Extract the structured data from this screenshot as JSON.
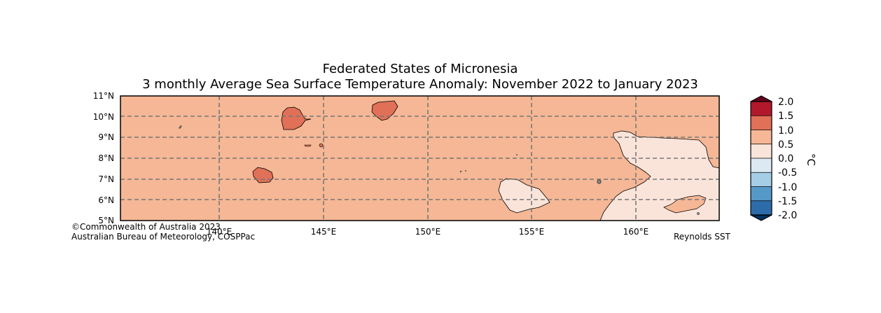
{
  "title": {
    "line1": "Federated States of Micronesia",
    "line2": "3 monthly Average Sea Surface Temperature Anomaly: November 2022 to January 2023"
  },
  "map": {
    "lon_range": [
      135.3,
      164.9
    ],
    "lat_range": [
      5,
      11
    ],
    "lat_ticks": [
      "11°N",
      "10°N",
      "9°N",
      "8°N",
      "7°N",
      "6°N",
      "5°N"
    ],
    "lon_ticks": [
      "140°E",
      "145°E",
      "150°E",
      "155°E",
      "160°E"
    ],
    "gridlines": "dashed grey",
    "background_anomaly_class": "0.5 to 1.0",
    "regions": [
      {
        "name": "warm-patch-north-west",
        "class": "1.0 to 1.5"
      },
      {
        "name": "warm-patch-north",
        "class": "1.0 to 1.5"
      },
      {
        "name": "warm-patch-west",
        "class": "1.0 to 1.5"
      },
      {
        "name": "cool-patch-central-south",
        "class": "0.0 to 0.5"
      },
      {
        "name": "cool-patch-east",
        "class": "0.0 to 0.5"
      }
    ]
  },
  "colorbar": {
    "label": "°C",
    "ticks": [
      "2.0",
      "1.5",
      "1.0",
      "0.5",
      "0.0",
      "-0.5",
      "-1.0",
      "-1.5",
      "-2.0"
    ],
    "colors": [
      "#b2182b",
      "#e07058",
      "#f5b795",
      "#fae4da",
      "#dde9f2",
      "#a5cde5",
      "#5599c8",
      "#2d6cab"
    ],
    "extend_over": "#67001f",
    "extend_under": "#053061"
  },
  "credits": {
    "copyright": "©Commonwealth of Australia 2023",
    "agency": "Australian Bureau of Meteorology, COSPPac",
    "source": "Reynolds SST"
  }
}
